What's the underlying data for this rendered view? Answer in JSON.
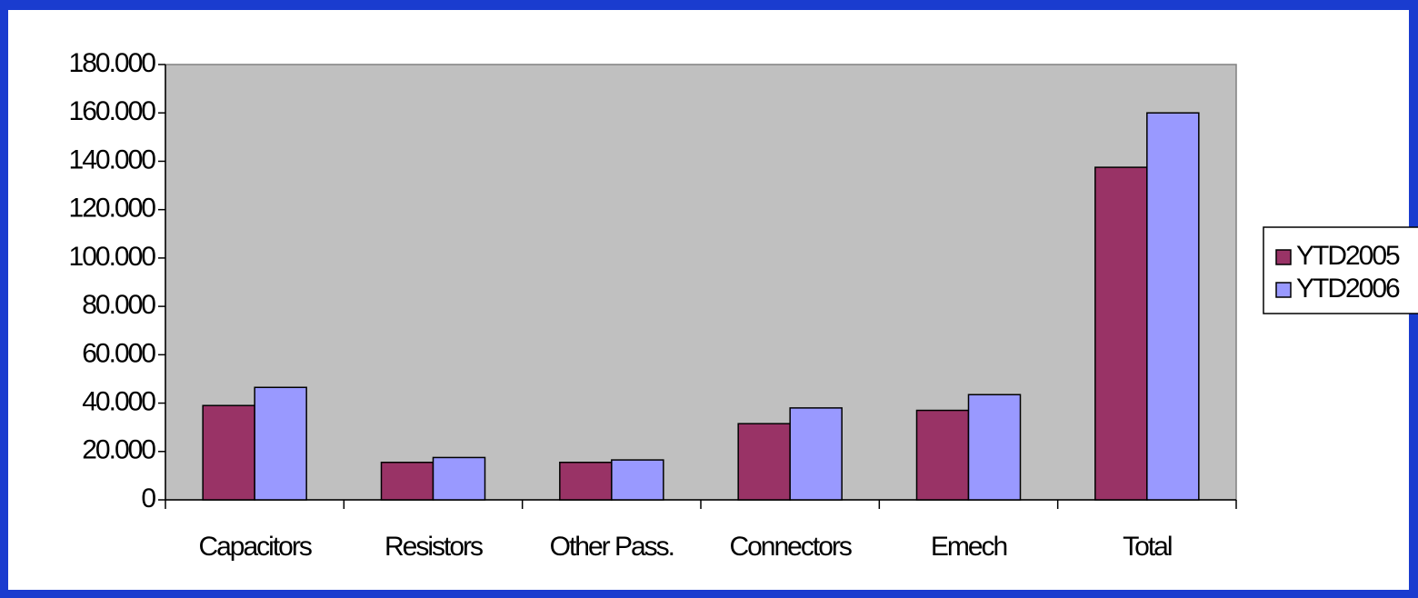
{
  "chart_data": {
    "type": "bar",
    "categories": [
      "Capacitors",
      "Resistors",
      "Other Pass.",
      "Connectors",
      "Emech",
      "Total"
    ],
    "series": [
      {
        "name": "YTD2005",
        "color": "#993366",
        "values": [
          39000,
          15500,
          15500,
          31500,
          37000,
          137500
        ]
      },
      {
        "name": "YTD2006",
        "color": "#9999ff",
        "values": [
          46500,
          17500,
          16500,
          38000,
          43500,
          160000
        ]
      }
    ],
    "ylim": [
      0,
      180000
    ],
    "yticks": [
      0,
      {
        "value": 20000,
        "label": "20.000"
      },
      {
        "value": 40000,
        "label": "40.000"
      },
      {
        "value": 60000,
        "label": "60.000"
      },
      {
        "value": 80000,
        "label": "80.000"
      },
      {
        "value": 100000,
        "label": "100.000"
      },
      {
        "value": 120000,
        "label": "120.000"
      },
      {
        "value": 140000,
        "label": "140.000"
      },
      {
        "value": 160000,
        "label": "160.000"
      },
      {
        "value": 180000,
        "label": "180.000"
      }
    ],
    "legend": "right"
  }
}
